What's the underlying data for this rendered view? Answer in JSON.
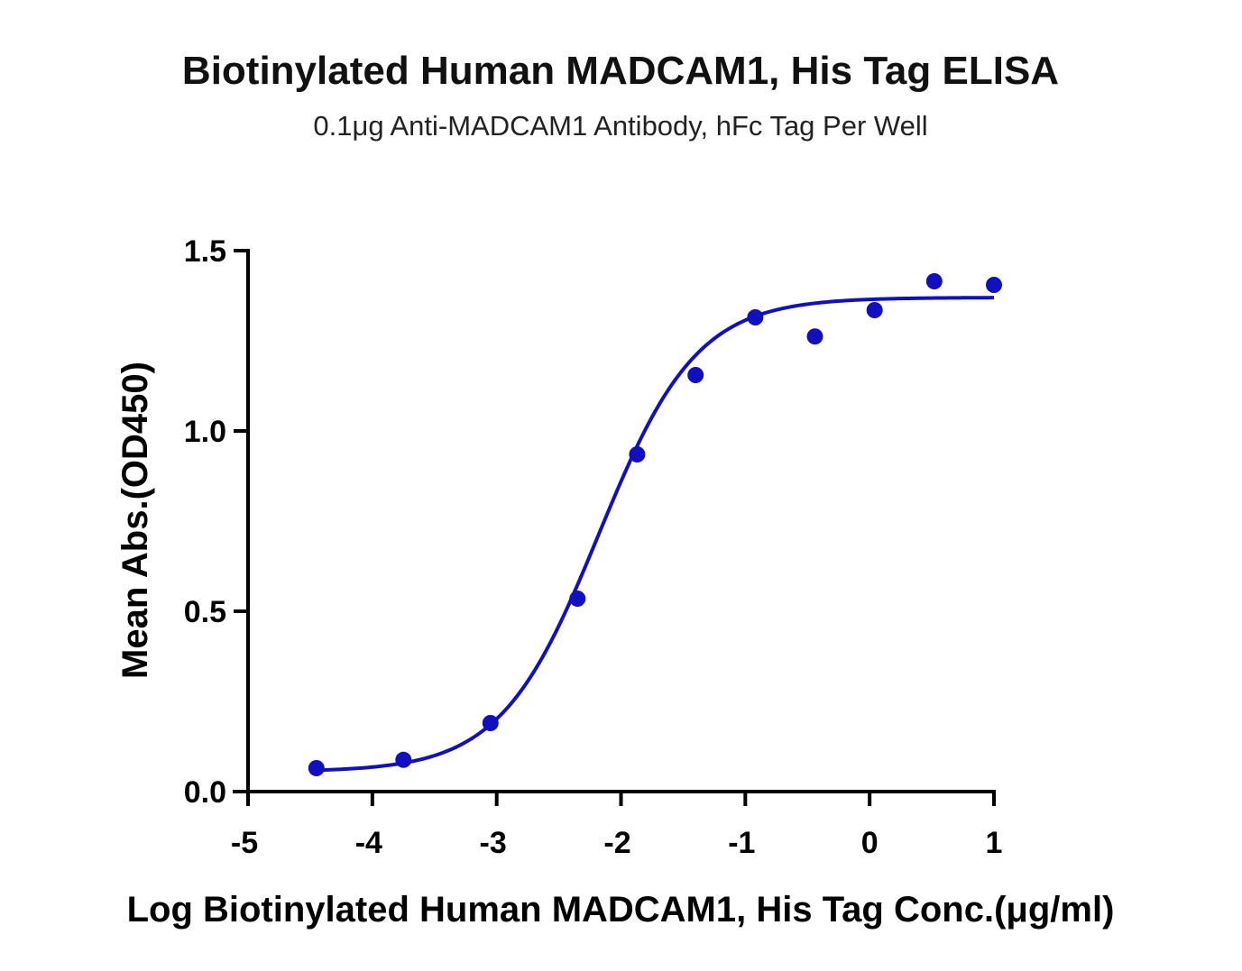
{
  "chart_data": {
    "type": "scatter",
    "title": "Biotinylated Human MADCAM1, His Tag ELISA",
    "subtitle": "0.1μg Anti-MADCAM1 Antibody, hFc Tag Per Well",
    "xlabel": "Log Biotinylated Human MADCAM1, His Tag Conc.(μg/ml)",
    "ylabel": "Mean Abs.(OD450)",
    "xlim": [
      -5,
      1
    ],
    "ylim": [
      0,
      1.5
    ],
    "xticks": [
      "-5",
      "-4",
      "-3",
      "-2",
      "-1",
      "0",
      "1"
    ],
    "yticks": [
      "0.0",
      "0.5",
      "1.0",
      "1.5"
    ],
    "grid": false,
    "colors": {
      "series": "#1010c0",
      "axis": "#000000"
    },
    "series": [
      {
        "points": [
          {
            "x": -4.45,
            "y": 0.065
          },
          {
            "x": -3.75,
            "y": 0.088
          },
          {
            "x": -3.05,
            "y": 0.19
          },
          {
            "x": -2.35,
            "y": 0.535
          },
          {
            "x": -1.87,
            "y": 0.935
          },
          {
            "x": -1.4,
            "y": 1.155
          },
          {
            "x": -0.92,
            "y": 1.315
          },
          {
            "x": -0.44,
            "y": 1.262
          },
          {
            "x": 0.04,
            "y": 1.335
          },
          {
            "x": 0.52,
            "y": 1.415
          },
          {
            "x": 1.0,
            "y": 1.405
          }
        ],
        "fit": {
          "model": "4PL",
          "bottom": 0.055,
          "top": 1.37,
          "logEC50": -2.18,
          "hill": 1.1,
          "range": [
            -4.45,
            1.0
          ]
        }
      }
    ]
  }
}
